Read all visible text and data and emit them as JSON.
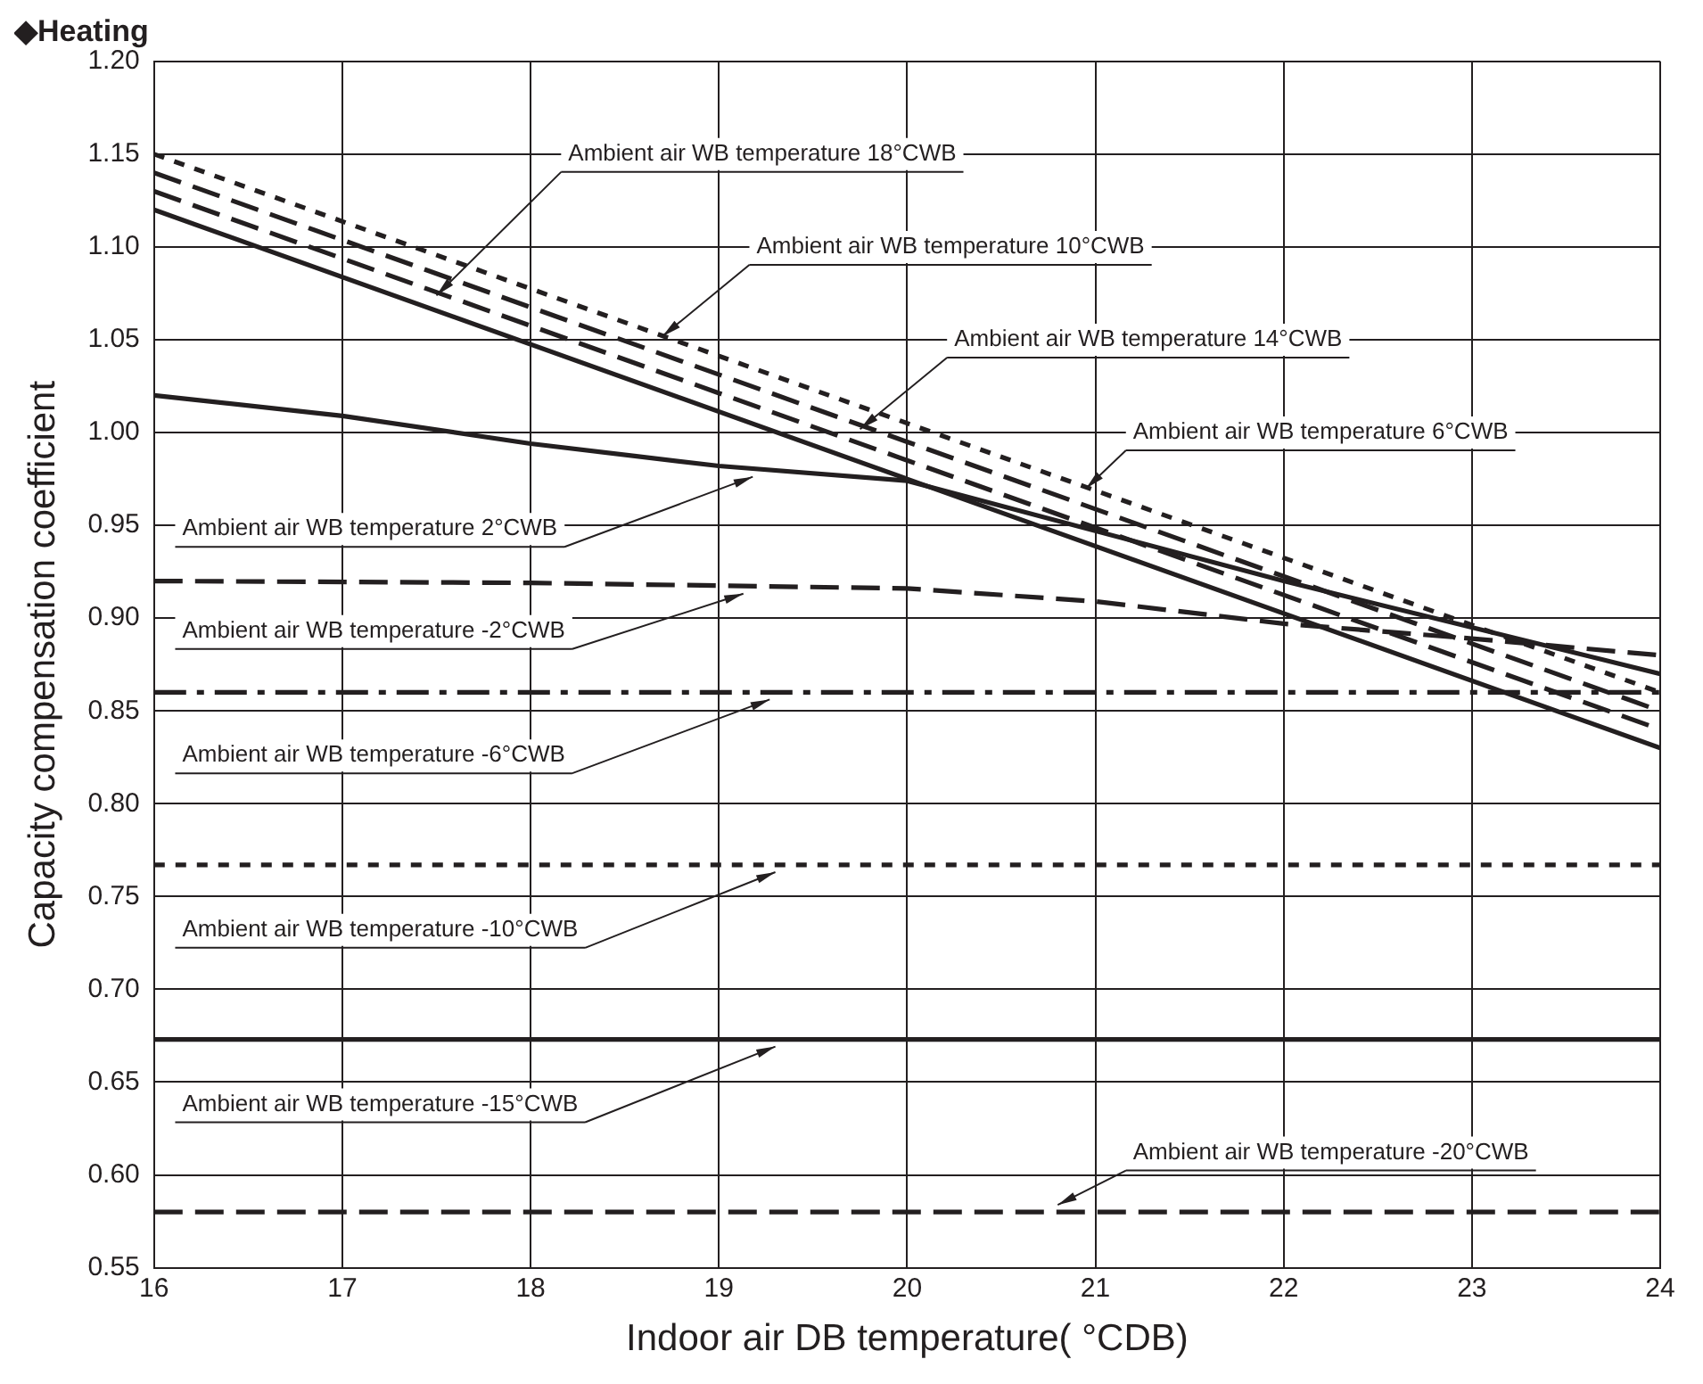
{
  "chart_data": {
    "type": "line",
    "title": "◆Heating",
    "xlabel": "Indoor air DB temperature( °CDB)",
    "ylabel": "Capacity compensation coefficient",
    "xlim": [
      16,
      24
    ],
    "xticks": [
      16,
      17,
      18,
      19,
      20,
      21,
      22,
      23,
      24
    ],
    "ylim": [
      0.55,
      1.2
    ],
    "yticks": [
      {
        "value": 0.55,
        "label": "0.55"
      },
      {
        "value": 0.6,
        "label": "0.60"
      },
      {
        "value": 0.65,
        "label": "0.65"
      },
      {
        "value": 0.7,
        "label": "0.70"
      },
      {
        "value": 0.75,
        "label": "0.75"
      },
      {
        "value": 0.8,
        "label": "0.80"
      },
      {
        "value": 0.85,
        "label": "0.85"
      },
      {
        "value": 0.9,
        "label": "0.90"
      },
      {
        "value": 0.95,
        "label": "0.95"
      },
      {
        "value": 1.0,
        "label": "1.00"
      },
      {
        "value": 1.05,
        "label": "1.05"
      },
      {
        "value": 1.1,
        "label": "1.10"
      },
      {
        "value": 1.15,
        "label": "1.15"
      },
      {
        "value": 1.2,
        "label": "1.20"
      }
    ],
    "grid": true,
    "legend": false,
    "marker": "none",
    "series": [
      {
        "color": "#231f20",
        "line_style": "solid",
        "x": [
          16,
          20,
          24
        ],
        "values": [
          1.12,
          0.975,
          0.83
        ]
      },
      {
        "color": "#231f20",
        "line_style": "dotted",
        "x": [
          16,
          20,
          24
        ],
        "values": [
          1.15,
          1.005,
          0.86
        ]
      },
      {
        "color": "#231f20",
        "line_style": "dashed",
        "x": [
          16,
          20,
          24
        ],
        "values": [
          1.13,
          0.985,
          0.84
        ]
      },
      {
        "color": "#231f20",
        "line_style": "dashed",
        "x": [
          16,
          20,
          24
        ],
        "values": [
          1.14,
          0.995,
          0.85
        ]
      },
      {
        "color": "#231f20",
        "line_style": "solid",
        "x": [
          16,
          17,
          18,
          19,
          20,
          22,
          24
        ],
        "values": [
          1.02,
          1.009,
          0.994,
          0.982,
          0.974,
          0.92,
          0.87
        ]
      },
      {
        "color": "#231f20",
        "line_style": "dashed",
        "x": [
          16,
          18,
          20,
          21,
          22,
          23,
          24
        ],
        "values": [
          0.92,
          0.919,
          0.916,
          0.909,
          0.897,
          0.889,
          0.88
        ]
      },
      {
        "color": "#231f20",
        "line_style": "dashdot",
        "x": [
          16,
          24
        ],
        "values": [
          0.86,
          0.86
        ]
      },
      {
        "color": "#231f20",
        "line_style": "dotted",
        "x": [
          16,
          24
        ],
        "values": [
          0.767,
          0.767
        ]
      },
      {
        "color": "#231f20",
        "line_style": "solid",
        "x": [
          16,
          24
        ],
        "values": [
          0.673,
          0.673
        ]
      },
      {
        "color": "#231f20",
        "line_style": "dashed",
        "x": [
          16,
          24
        ],
        "values": [
          0.58,
          0.58
        ]
      }
    ],
    "annotations": [
      {
        "text": "Ambient air WB temperature 18°CWB",
        "x": 17.5,
        "y": 1.07
      },
      {
        "text": "Ambient air WB temperature 10°CWB",
        "x": 18.7,
        "y": 1.048
      },
      {
        "text": "Ambient air WB temperature 14°CWB",
        "x": 19.75,
        "y": 0.998
      },
      {
        "text": "Ambient air WB temperature 6°CWB",
        "x": 20.95,
        "y": 0.966
      },
      {
        "text": "Ambient air WB temperature 2°CWB",
        "x": 19.18,
        "y": 0.98
      },
      {
        "text": "Ambient air WB temperature -2°CWB",
        "x": 19.13,
        "y": 0.917
      },
      {
        "text": "Ambient air WB temperature -6°CWB",
        "x": 19.27,
        "y": 0.86
      },
      {
        "text": "Ambient air WB temperature -10°CWB",
        "x": 19.3,
        "y": 0.767
      },
      {
        "text": "Ambient air WB temperature -15°CWB",
        "x": 19.3,
        "y": 0.673
      },
      {
        "text": "Ambient air WB temperature -20°CWB",
        "x": 20.8,
        "y": 0.58
      }
    ]
  }
}
